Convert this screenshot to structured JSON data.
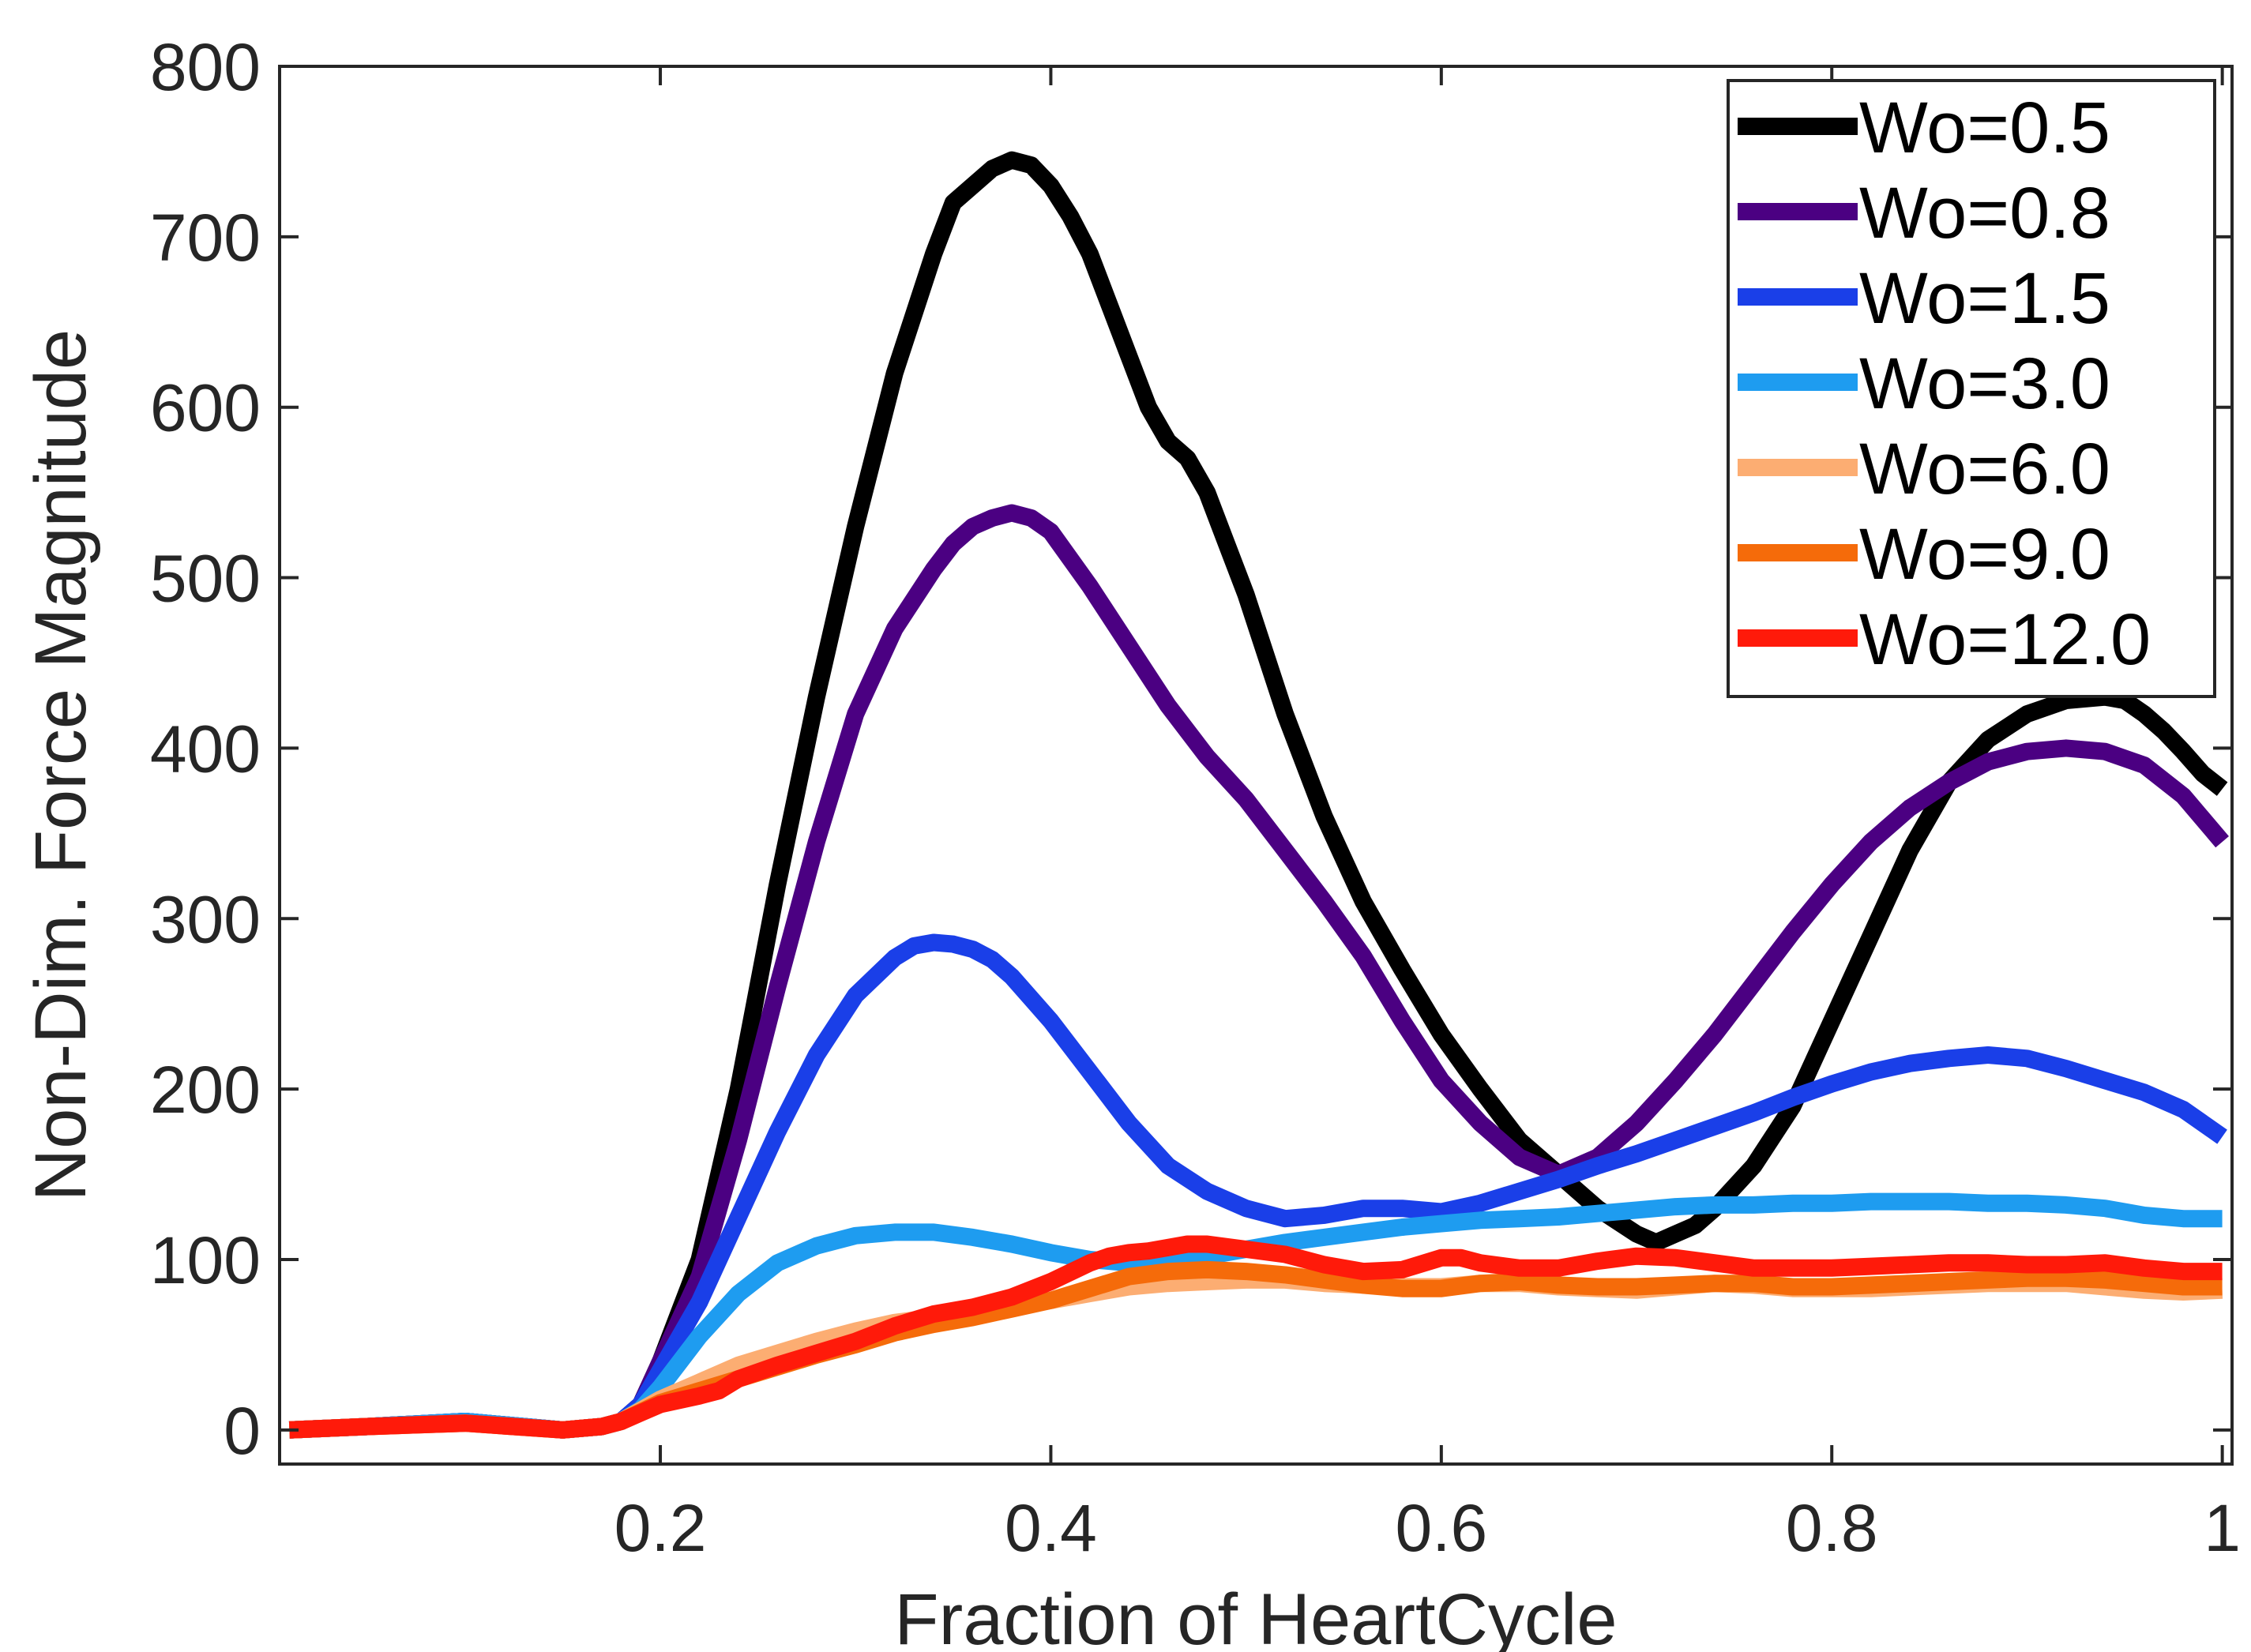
{
  "chart_data": {
    "type": "line",
    "title": "",
    "xlabel": "Fraction of HeartCycle",
    "ylabel": "Non-Dim. Force Magnitude",
    "xlim": [
      0.005,
      1.005
    ],
    "ylim": [
      -20,
      800
    ],
    "xticks": [
      0.2,
      0.4,
      0.6,
      0.8,
      1
    ],
    "xtick_labels": [
      "0.2",
      "0.4",
      "0.6",
      "0.8",
      "1"
    ],
    "yticks": [
      0,
      100,
      200,
      300,
      400,
      500,
      600,
      700,
      800
    ],
    "ytick_labels": [
      "0",
      "100",
      "200",
      "300",
      "400",
      "500",
      "600",
      "700",
      "800"
    ],
    "grid": false,
    "legend_position": "top-right",
    "series": [
      {
        "name": "Wo=0.5",
        "color": "#000000",
        "x": [
          0.01,
          0.05,
          0.1,
          0.15,
          0.17,
          0.18,
          0.19,
          0.2,
          0.22,
          0.24,
          0.26,
          0.28,
          0.3,
          0.32,
          0.34,
          0.35,
          0.36,
          0.37,
          0.38,
          0.39,
          0.4,
          0.41,
          0.42,
          0.43,
          0.44,
          0.45,
          0.46,
          0.47,
          0.48,
          0.49,
          0.5,
          0.52,
          0.54,
          0.56,
          0.58,
          0.6,
          0.62,
          0.64,
          0.66,
          0.68,
          0.7,
          0.71,
          0.72,
          0.73,
          0.74,
          0.76,
          0.78,
          0.8,
          0.82,
          0.84,
          0.86,
          0.88,
          0.9,
          0.92,
          0.94,
          0.95,
          0.96,
          0.97,
          0.98,
          0.99,
          1.0
        ],
        "y": [
          0,
          2,
          5,
          0,
          2,
          5,
          15,
          40,
          100,
          200,
          320,
          430,
          530,
          620,
          690,
          720,
          730,
          740,
          745,
          742,
          730,
          712,
          690,
          660,
          630,
          600,
          580,
          570,
          550,
          520,
          490,
          420,
          360,
          310,
          270,
          232,
          200,
          170,
          150,
          130,
          115,
          110,
          115,
          120,
          130,
          155,
          190,
          240,
          290,
          340,
          380,
          405,
          420,
          428,
          430,
          428,
          420,
          410,
          398,
          385,
          376
        ]
      },
      {
        "name": "Wo=0.8",
        "color": "#4b0082",
        "x": [
          0.01,
          0.05,
          0.1,
          0.15,
          0.17,
          0.18,
          0.19,
          0.2,
          0.22,
          0.24,
          0.26,
          0.28,
          0.3,
          0.32,
          0.34,
          0.35,
          0.36,
          0.37,
          0.38,
          0.39,
          0.4,
          0.42,
          0.44,
          0.46,
          0.48,
          0.5,
          0.52,
          0.54,
          0.56,
          0.58,
          0.6,
          0.62,
          0.64,
          0.66,
          0.68,
          0.7,
          0.72,
          0.74,
          0.76,
          0.78,
          0.8,
          0.82,
          0.84,
          0.86,
          0.88,
          0.9,
          0.92,
          0.94,
          0.96,
          0.98,
          1.0
        ],
        "y": [
          0,
          2,
          5,
          0,
          2,
          5,
          15,
          40,
          90,
          170,
          260,
          345,
          420,
          470,
          505,
          520,
          530,
          535,
          538,
          535,
          527,
          495,
          460,
          425,
          395,
          370,
          340,
          310,
          278,
          240,
          205,
          180,
          160,
          150,
          160,
          180,
          205,
          232,
          262,
          292,
          320,
          345,
          365,
          380,
          392,
          398,
          400,
          398,
          390,
          372,
          345
        ]
      },
      {
        "name": "Wo=1.5",
        "color": "#1a3fe8",
        "x": [
          0.01,
          0.05,
          0.1,
          0.15,
          0.17,
          0.18,
          0.19,
          0.2,
          0.22,
          0.24,
          0.26,
          0.28,
          0.3,
          0.32,
          0.33,
          0.34,
          0.35,
          0.36,
          0.37,
          0.38,
          0.4,
          0.42,
          0.44,
          0.46,
          0.48,
          0.5,
          0.52,
          0.54,
          0.56,
          0.58,
          0.6,
          0.62,
          0.64,
          0.66,
          0.68,
          0.7,
          0.72,
          0.74,
          0.76,
          0.78,
          0.8,
          0.82,
          0.84,
          0.86,
          0.88,
          0.9,
          0.92,
          0.94,
          0.96,
          0.98,
          1.0
        ],
        "y": [
          0,
          2,
          5,
          0,
          2,
          5,
          15,
          35,
          75,
          125,
          175,
          220,
          255,
          277,
          284,
          286,
          285,
          282,
          276,
          266,
          240,
          210,
          180,
          155,
          140,
          130,
          124,
          126,
          130,
          130,
          128,
          133,
          140,
          147,
          155,
          162,
          170,
          178,
          186,
          195,
          203,
          210,
          215,
          218,
          220,
          218,
          212,
          205,
          198,
          188,
          172
        ]
      },
      {
        "name": "Wo=3.0",
        "color": "#1e9cf0",
        "x": [
          0.01,
          0.05,
          0.1,
          0.15,
          0.17,
          0.18,
          0.19,
          0.2,
          0.22,
          0.24,
          0.26,
          0.28,
          0.3,
          0.32,
          0.34,
          0.36,
          0.38,
          0.4,
          0.42,
          0.44,
          0.46,
          0.48,
          0.5,
          0.52,
          0.54,
          0.56,
          0.58,
          0.6,
          0.62,
          0.64,
          0.66,
          0.68,
          0.7,
          0.72,
          0.74,
          0.76,
          0.78,
          0.8,
          0.82,
          0.84,
          0.86,
          0.88,
          0.9,
          0.92,
          0.94,
          0.96,
          0.98,
          1.0
        ],
        "y": [
          0,
          2,
          5,
          0,
          2,
          5,
          12,
          25,
          55,
          80,
          98,
          108,
          114,
          116,
          116,
          113,
          109,
          104,
          100,
          98,
          99,
          102,
          106,
          110,
          113,
          116,
          119,
          121,
          123,
          124,
          125,
          127,
          129,
          131,
          132,
          132,
          133,
          133,
          134,
          134,
          134,
          133,
          133,
          132,
          130,
          126,
          124,
          124
        ]
      },
      {
        "name": "Wo=6.0",
        "color": "#fcad72",
        "x": [
          0.01,
          0.05,
          0.1,
          0.15,
          0.17,
          0.18,
          0.2,
          0.22,
          0.24,
          0.26,
          0.28,
          0.3,
          0.32,
          0.34,
          0.36,
          0.38,
          0.4,
          0.42,
          0.44,
          0.46,
          0.48,
          0.5,
          0.52,
          0.54,
          0.56,
          0.58,
          0.6,
          0.62,
          0.64,
          0.66,
          0.68,
          0.7,
          0.72,
          0.74,
          0.76,
          0.78,
          0.8,
          0.82,
          0.84,
          0.86,
          0.88,
          0.9,
          0.92,
          0.94,
          0.96,
          0.98,
          1.0
        ],
        "y": [
          0,
          2,
          4,
          0,
          2,
          5,
          18,
          28,
          38,
          45,
          52,
          58,
          63,
          66,
          69,
          72,
          76,
          80,
          84,
          86,
          87,
          88,
          88,
          86,
          85,
          84,
          84,
          86,
          86,
          84,
          83,
          82,
          84,
          86,
          85,
          83,
          83,
          83,
          84,
          85,
          86,
          86,
          86,
          84,
          82,
          81,
          82
        ]
      },
      {
        "name": "Wo=9.0",
        "color": "#f56b0a",
        "x": [
          0.01,
          0.05,
          0.1,
          0.15,
          0.17,
          0.18,
          0.2,
          0.22,
          0.24,
          0.26,
          0.28,
          0.3,
          0.32,
          0.34,
          0.36,
          0.38,
          0.4,
          0.42,
          0.44,
          0.46,
          0.48,
          0.5,
          0.52,
          0.54,
          0.56,
          0.58,
          0.6,
          0.62,
          0.64,
          0.66,
          0.68,
          0.7,
          0.72,
          0.74,
          0.76,
          0.78,
          0.8,
          0.82,
          0.84,
          0.86,
          0.88,
          0.9,
          0.92,
          0.94,
          0.96,
          0.98,
          1.0
        ],
        "y": [
          0,
          2,
          4,
          0,
          2,
          5,
          16,
          23,
          30,
          37,
          44,
          50,
          57,
          62,
          66,
          71,
          76,
          83,
          90,
          93,
          94,
          93,
          91,
          88,
          85,
          83,
          83,
          86,
          87,
          85,
          84,
          84,
          85,
          86,
          86,
          84,
          84,
          85,
          86,
          87,
          88,
          89,
          89,
          88,
          86,
          84,
          84
        ]
      },
      {
        "name": "Wo=12.0",
        "color": "#ff1a0a",
        "x": [
          0.01,
          0.05,
          0.1,
          0.15,
          0.17,
          0.18,
          0.19,
          0.2,
          0.22,
          0.23,
          0.24,
          0.26,
          0.28,
          0.3,
          0.32,
          0.34,
          0.36,
          0.38,
          0.4,
          0.42,
          0.43,
          0.44,
          0.45,
          0.46,
          0.47,
          0.48,
          0.5,
          0.52,
          0.54,
          0.56,
          0.58,
          0.6,
          0.61,
          0.62,
          0.64,
          0.66,
          0.68,
          0.7,
          0.72,
          0.74,
          0.76,
          0.78,
          0.8,
          0.82,
          0.84,
          0.86,
          0.88,
          0.9,
          0.92,
          0.94,
          0.96,
          0.98,
          1.0
        ],
        "y": [
          0,
          2,
          4,
          0,
          2,
          5,
          10,
          15,
          20,
          23,
          30,
          38,
          45,
          52,
          61,
          68,
          72,
          78,
          87,
          98,
          102,
          104,
          105,
          107,
          109,
          109,
          106,
          103,
          97,
          93,
          94,
          101,
          101,
          98,
          95,
          95,
          99,
          102,
          101,
          98,
          95,
          95,
          95,
          96,
          97,
          98,
          98,
          97,
          97,
          98,
          95,
          93,
          93
        ]
      }
    ]
  }
}
